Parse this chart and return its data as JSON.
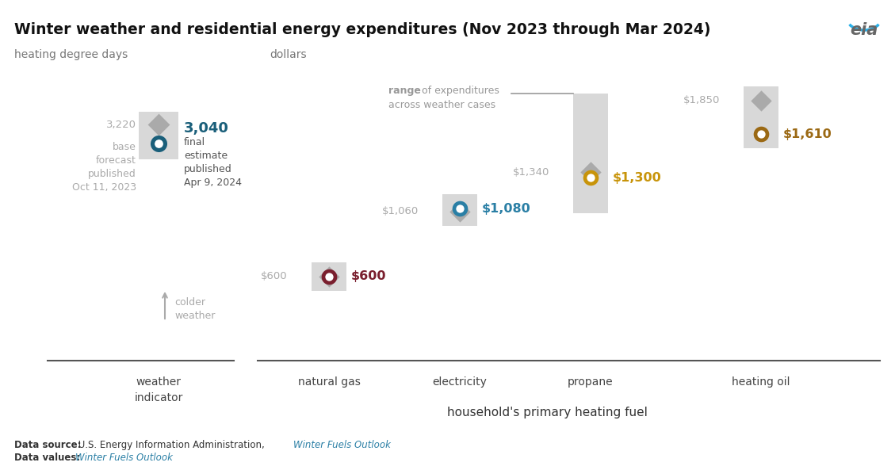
{
  "title": "Winter weather and residential energy expenditures (Nov 2023 through Mar 2024)",
  "subtitle_left": "heating degree days",
  "subtitle_right": "dollars",
  "bg_color": "#ffffff",
  "fuels": [
    "natural gas",
    "electricity",
    "propane",
    "heating oil"
  ],
  "final_values": [
    600,
    1080,
    1300,
    1610
  ],
  "base_values": [
    600,
    1060,
    1340,
    1850
  ],
  "final_colors": [
    "#7a1f2e",
    "#2a7fa5",
    "#c8940a",
    "#9b6914"
  ],
  "base_marker_color": "#888888",
  "range_box_color": "#d4d4d4",
  "weather_marker_color_base": "#888888",
  "weather_marker_color_final": "#1a5f7a",
  "text_color_gray": "#999999",
  "text_color_dark": "#444444",
  "text_color_blue": "#1a5f7a",
  "footer_link_color": "#2a7fa5"
}
